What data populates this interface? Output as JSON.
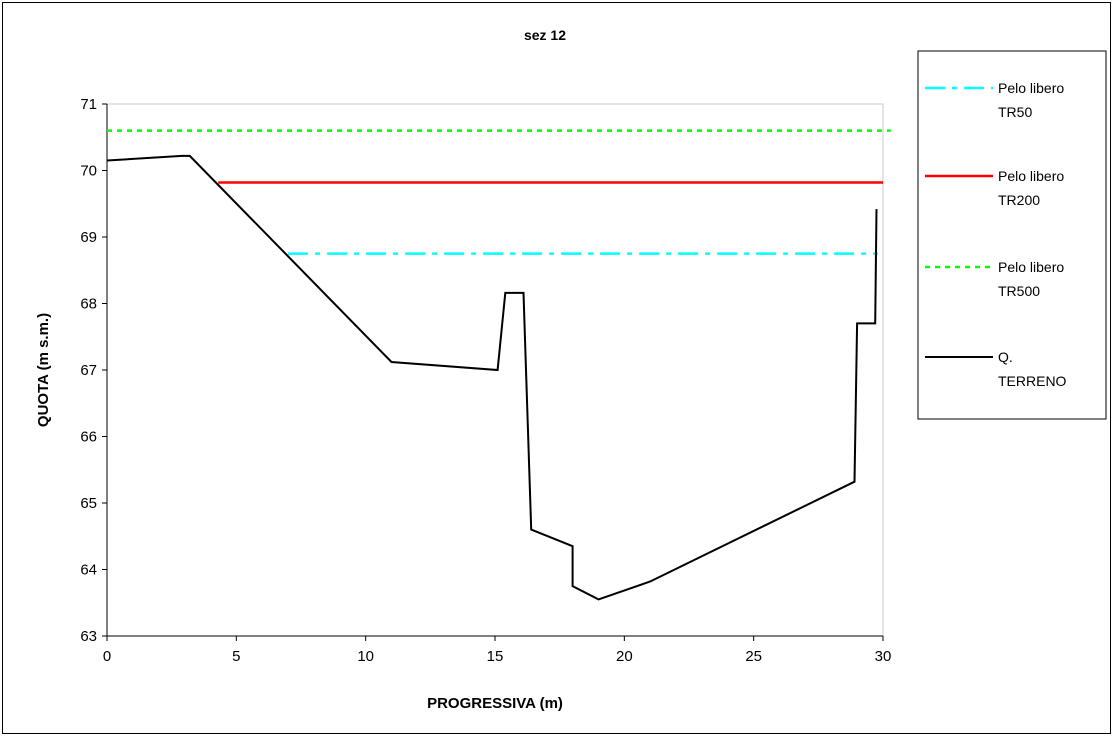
{
  "chart_data": {
    "type": "line",
    "title": "sez 12",
    "xlabel": "PROGRESSIVA (m)",
    "ylabel": "QUOTA (m s.m.)",
    "xlim": [
      0,
      30
    ],
    "ylim": [
      63,
      71
    ],
    "xticks": [
      "0",
      "5",
      "10",
      "15",
      "20",
      "25",
      "30"
    ],
    "yticks": [
      "63",
      "64",
      "65",
      "66",
      "67",
      "68",
      "69",
      "70",
      "71"
    ],
    "grid": false,
    "legend_position": "right",
    "series": [
      {
        "name": "Pelo libero TR50",
        "label_lines": [
          "Pelo libero",
          "TR50"
        ],
        "color": "#00ffff",
        "dash": "dash-dot",
        "x": [
          7.0,
          29.8
        ],
        "y": [
          68.75,
          68.75
        ]
      },
      {
        "name": "Pelo libero TR200",
        "label_lines": [
          "Pelo libero",
          "TR200"
        ],
        "color": "#ff0000",
        "dash": "solid",
        "x": [
          4.3,
          30.0
        ],
        "y": [
          69.82,
          69.82
        ]
      },
      {
        "name": "Pelo libero TR500",
        "label_lines": [
          "Pelo libero",
          "TR500"
        ],
        "color": "#00ff00",
        "dash": "dotted",
        "x": [
          0.0,
          30.3
        ],
        "y": [
          70.6,
          70.6
        ]
      },
      {
        "name": "Q. TERRENO",
        "label_lines": [
          "Q.",
          "TERRENO"
        ],
        "color": "#000000",
        "dash": "solid",
        "x": [
          0.0,
          2.9,
          3.2,
          11.0,
          15.1,
          15.4,
          16.1,
          16.4,
          18.0,
          18.0,
          19.0,
          21.0,
          28.9,
          29.0,
          29.7,
          29.75
        ],
        "y": [
          70.15,
          70.22,
          70.22,
          67.12,
          67.0,
          68.16,
          68.16,
          64.6,
          64.35,
          63.75,
          63.55,
          63.82,
          65.32,
          67.7,
          67.7,
          69.42
        ]
      }
    ]
  }
}
